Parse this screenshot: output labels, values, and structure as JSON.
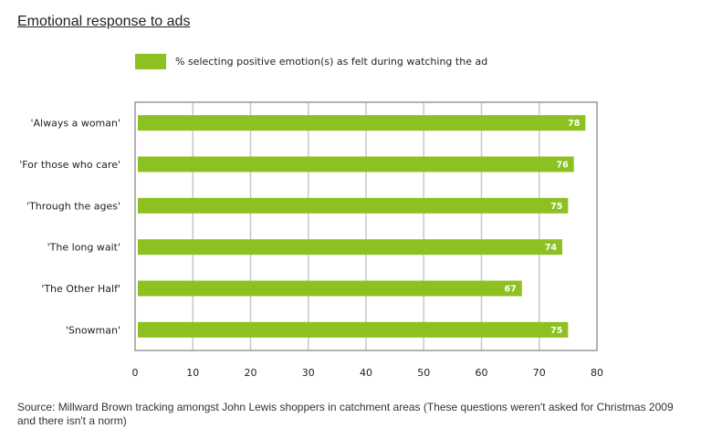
{
  "page": {
    "title": "Emotional response to ads",
    "source": "Source: Millward Brown tracking amongst John Lewis shoppers in catchment areas (These questions weren't asked for Christmas 2009 and there isn't a norm)"
  },
  "chart_data": {
    "type": "bar",
    "orientation": "horizontal",
    "categories": [
      "'Always a woman'",
      "'For those who care'",
      "'Through the ages'",
      "'The long wait'",
      "'The Other Half'",
      "'Snowman'"
    ],
    "series": [
      {
        "name": "% selecting positive emotion(s) as felt during watching the ad",
        "values": [
          78,
          76,
          75,
          74,
          67,
          75
        ]
      }
    ],
    "xlim": [
      0,
      80
    ],
    "xticks": [
      0,
      10,
      20,
      30,
      40,
      50,
      60,
      70,
      80
    ],
    "grid": true,
    "legend_position": "top",
    "data_labels": true,
    "colors": {
      "bar": "#8dc021",
      "grid": "#c8c8c8",
      "frame": "#999999"
    }
  }
}
